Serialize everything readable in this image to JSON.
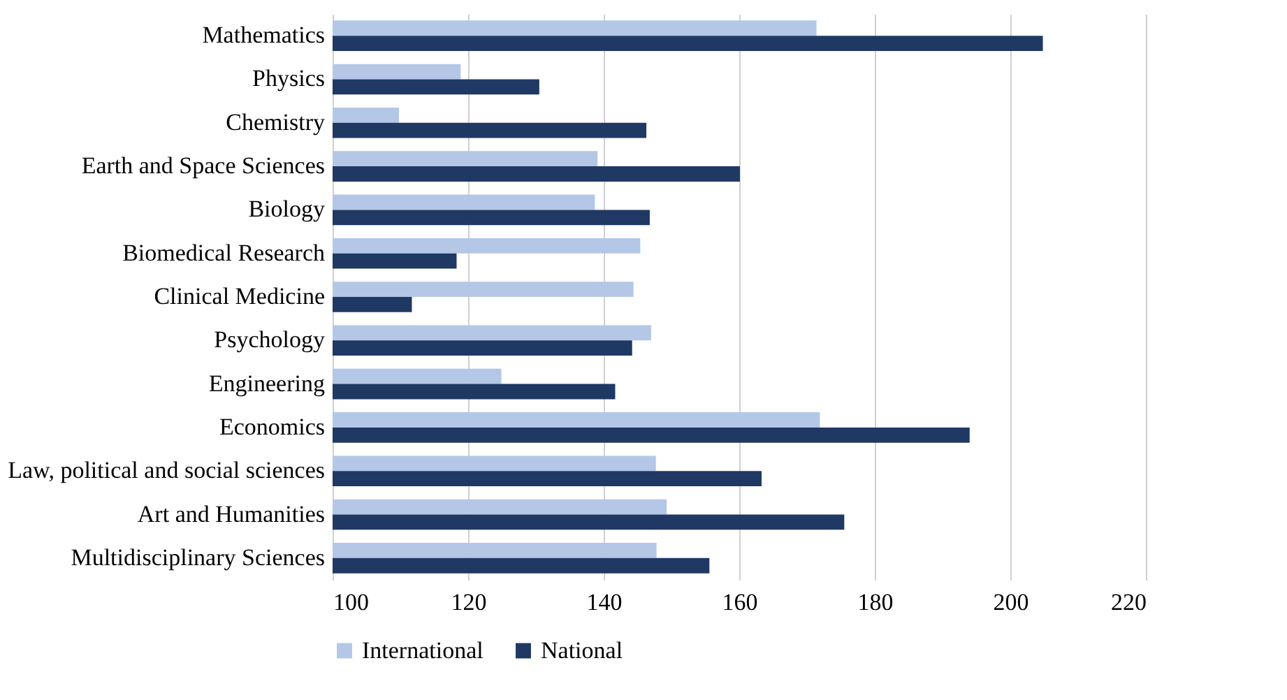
{
  "chart_data": {
    "type": "bar",
    "orientation": "horizontal",
    "categories": [
      "Mathematics",
      "Physics",
      "Chemistry",
      "Earth and Space Sciences",
      "Biology",
      "Biomedical Research",
      "Clinical Medicine",
      "Psychology",
      "Engineering",
      "Economics",
      "Law, political and social sciences",
      "Art and Humanities",
      "Multidisciplinary Sciences"
    ],
    "series": [
      {
        "name": "International",
        "color": "#b4c7e7",
        "values": [
          171.4,
          118.9,
          109.8,
          139.1,
          138.7,
          145.4,
          144.4,
          147.0,
          124.9,
          171.9,
          147.7,
          149.3,
          147.8
        ]
      },
      {
        "name": "National",
        "color": "#203864",
        "values": [
          204.8,
          130.5,
          146.3,
          160.1,
          146.8,
          118.3,
          111.7,
          144.2,
          141.7,
          194.0,
          163.3,
          175.5,
          155.6
        ]
      }
    ],
    "xlim": [
      100,
      220
    ],
    "xticks": [
      100,
      120,
      140,
      160,
      180,
      200,
      220
    ],
    "grid": "x",
    "legend": "bottom"
  }
}
